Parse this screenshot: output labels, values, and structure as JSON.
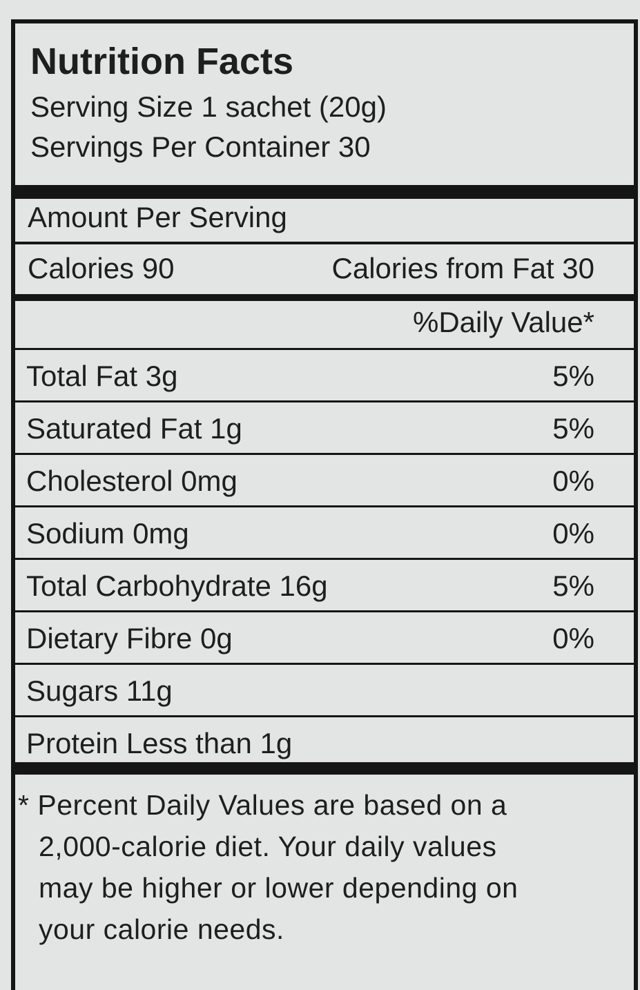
{
  "header": {
    "title": "Nutrition Facts",
    "serving_size": "Serving Size 1 sachet (20g)",
    "servings_per_container": "Servings Per Container 30"
  },
  "amount_per_serving": "Amount Per Serving",
  "calories": "Calories 90",
  "calories_from_fat": "Calories from Fat 30",
  "daily_value_header": "%Daily Value*",
  "nutrients": [
    {
      "label": "Total Fat 3g",
      "dv": "5%"
    },
    {
      "label": "Saturated Fat 1g",
      "dv": "5%"
    },
    {
      "label": "Cholesterol 0mg",
      "dv": "0%"
    },
    {
      "label": "Sodium 0mg",
      "dv": "0%"
    },
    {
      "label": "Total Carbohydrate 16g",
      "dv": "5%"
    },
    {
      "label": "Dietary Fibre 0g",
      "dv": "0%"
    },
    {
      "label": "Sugars 11g"
    },
    {
      "label": "Protein Less than 1g"
    }
  ],
  "footnote": [
    "* Percent Daily Values are based on a",
    "2,000-calorie diet. Your daily values",
    "may be higher or lower depending on",
    "your calorie needs."
  ]
}
